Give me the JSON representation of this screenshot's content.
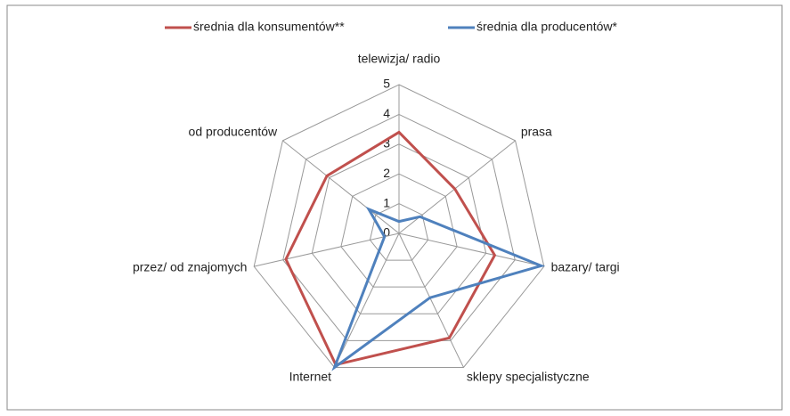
{
  "chart_data": {
    "type": "radar",
    "categories": [
      "telewizja/ radio",
      "prasa",
      "bazary/ targi",
      "sklepy specjalistyczne",
      "Internet",
      "przez/ od znajomych",
      "od producentów"
    ],
    "series": [
      {
        "name": "średnia dla konsumentów**",
        "color": "#c0504d",
        "values": [
          3.4,
          2.4,
          3.3,
          3.9,
          4.9,
          3.9,
          3.1
        ]
      },
      {
        "name": "średnia dla producentów*",
        "color": "#4f81bd",
        "values": [
          0.4,
          0.9,
          4.9,
          2.4,
          5.0,
          0.5,
          1.3
        ]
      }
    ],
    "ylim": [
      0,
      5
    ],
    "yticks": [
      0,
      1,
      2,
      3,
      4,
      5
    ],
    "grid": true,
    "legend": "top"
  }
}
